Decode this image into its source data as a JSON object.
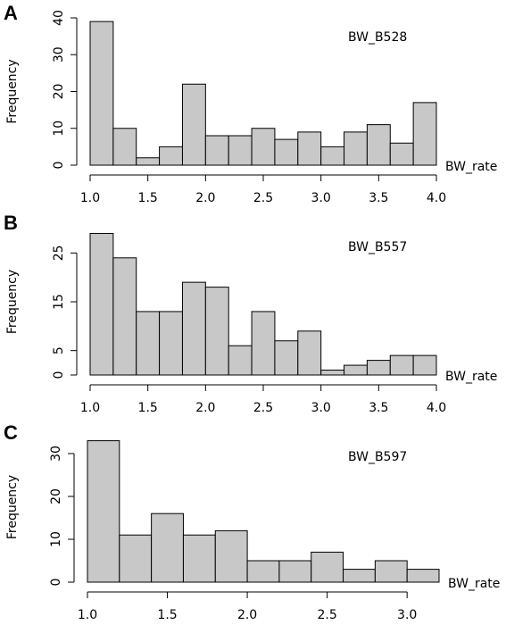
{
  "chart_data": [
    {
      "type": "histogram",
      "panel_label": "A",
      "title": "BW_B528",
      "xlabel": "BW_rate",
      "ylabel": "Frequency",
      "bins": [
        1.0,
        1.2,
        1.4,
        1.6,
        1.8,
        2.0,
        2.2,
        2.4,
        2.6,
        2.8,
        3.0,
        3.2,
        3.4,
        3.6,
        3.8,
        4.0
      ],
      "counts": [
        39,
        10,
        2,
        5,
        22,
        8,
        8,
        10,
        7,
        9,
        5,
        9,
        11,
        6,
        17
      ],
      "color": "#c8c8c8",
      "xlim": [
        1.0,
        4.0
      ],
      "ylim": [
        0,
        40
      ],
      "xticks": [
        {
          "value": 1.0,
          "label": "1.0"
        },
        {
          "value": 1.5,
          "label": "1.5"
        },
        {
          "value": 2.0,
          "label": "2.0"
        },
        {
          "value": 2.5,
          "label": "2.5"
        },
        {
          "value": 3.0,
          "label": "3.0"
        },
        {
          "value": 3.5,
          "label": "3.5"
        },
        {
          "value": 4.0,
          "label": "4.0"
        }
      ],
      "yticks": [
        0,
        10,
        20,
        30,
        40
      ]
    },
    {
      "type": "histogram",
      "panel_label": "B",
      "title": "BW_B557",
      "xlabel": "BW_rate",
      "ylabel": "Frequency",
      "bins": [
        1.0,
        1.2,
        1.4,
        1.6,
        1.8,
        2.0,
        2.2,
        2.4,
        2.6,
        2.8,
        3.0,
        3.2,
        3.4,
        3.6,
        3.8,
        4.0
      ],
      "counts": [
        29,
        24,
        13,
        13,
        19,
        18,
        6,
        13,
        7,
        9,
        1,
        2,
        3,
        4,
        4
      ],
      "color": "#c8c8c8",
      "xlim": [
        1.0,
        4.0
      ],
      "ylim": [
        0,
        30
      ],
      "xticks": [
        {
          "value": 1.0,
          "label": "1.0"
        },
        {
          "value": 1.5,
          "label": "1.5"
        },
        {
          "value": 2.0,
          "label": "2.0"
        },
        {
          "value": 2.5,
          "label": "2.5"
        },
        {
          "value": 3.0,
          "label": "3.0"
        },
        {
          "value": 3.5,
          "label": "3.5"
        },
        {
          "value": 4.0,
          "label": "4.0"
        }
      ],
      "yticks": [
        0,
        5,
        15,
        25
      ]
    },
    {
      "type": "histogram",
      "panel_label": "C",
      "title": "BW_B597",
      "xlabel": "BW_rate",
      "ylabel": "Frequency",
      "bins": [
        1.0,
        1.2,
        1.4,
        1.6,
        1.8,
        2.0,
        2.2,
        2.4,
        2.6,
        2.8,
        3.0,
        3.2
      ],
      "counts": [
        33,
        11,
        16,
        11,
        12,
        5,
        5,
        7,
        3,
        5,
        3
      ],
      "color": "#c8c8c8",
      "xlim": [
        1.0,
        3.2
      ],
      "ylim": [
        0,
        35
      ],
      "xticks": [
        {
          "value": 1.0,
          "label": "1.0"
        },
        {
          "value": 1.5,
          "label": "1.5"
        },
        {
          "value": 2.0,
          "label": "2.0"
        },
        {
          "value": 2.5,
          "label": "2.5"
        },
        {
          "value": 3.0,
          "label": "3.0"
        }
      ],
      "yticks": [
        0,
        10,
        20,
        30
      ]
    }
  ]
}
